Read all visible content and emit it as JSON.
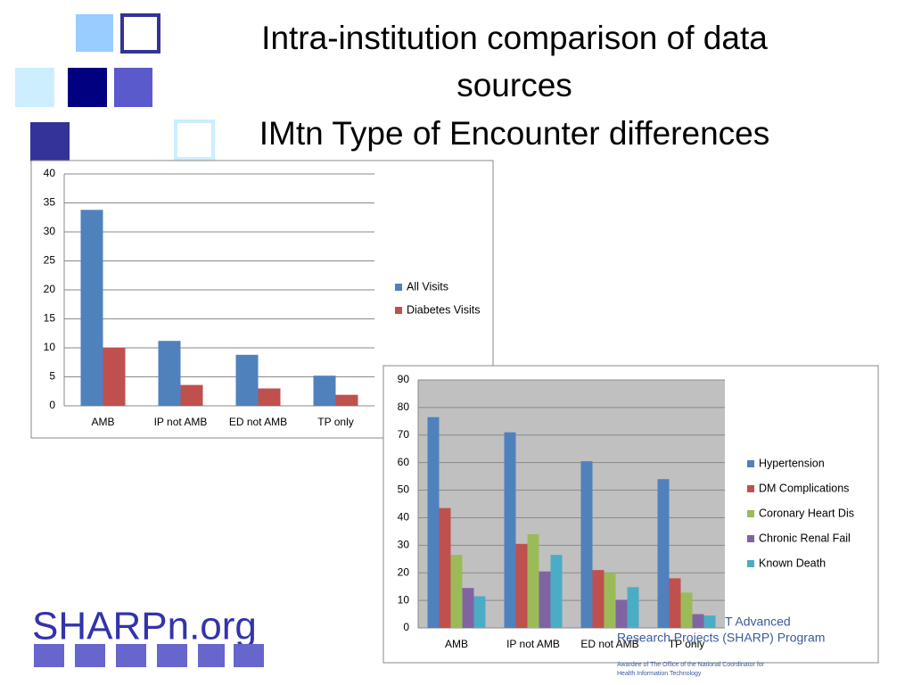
{
  "slide": {
    "title": [
      "Intra-institution comparison of data",
      "sources",
      "IMtn Type of Encounter differences"
    ],
    "logo": "SHARPn.org",
    "badge": [
      "T Advanced",
      "Research Projects (SHARP) Program",
      "Awardee of The Office of the National Coordinator for",
      "Health Information Technology"
    ]
  },
  "chart_data": [
    {
      "type": "bar",
      "categories": [
        "AMB",
        "IP not AMB",
        "ED not AMB",
        "TP only"
      ],
      "series": [
        {
          "name": "All Visits",
          "color": "#4f81bd",
          "values": [
            33.8,
            11.2,
            8.8,
            5.2
          ]
        },
        {
          "name": "Diabetes Visits",
          "color": "#c0504d",
          "values": [
            10,
            3.6,
            3.0,
            1.9
          ]
        }
      ],
      "ylim": [
        0,
        40
      ],
      "yticks": [
        0,
        5,
        10,
        15,
        20,
        25,
        30,
        35,
        40
      ],
      "grid": true,
      "legend": "right"
    },
    {
      "type": "bar",
      "categories": [
        "AMB",
        "IP not AMB",
        "ED not AMB",
        "TP only"
      ],
      "series": [
        {
          "name": "Hypertension",
          "color": "#4f81bd",
          "values": [
            76.5,
            71,
            60.5,
            54
          ]
        },
        {
          "name": "DM Complications",
          "color": "#c0504d",
          "values": [
            43.5,
            30.5,
            21,
            18
          ]
        },
        {
          "name": "Coronary Heart Dis",
          "color": "#9bbb59",
          "values": [
            26.5,
            34,
            20,
            12.8
          ]
        },
        {
          "name": "Chronic Renal Fail",
          "color": "#8064a2",
          "values": [
            14.5,
            20.5,
            10.2,
            5
          ]
        },
        {
          "name": "Known Death",
          "color": "#4bacc6",
          "values": [
            11.5,
            26.5,
            14.8,
            4.5
          ]
        }
      ],
      "ylim": [
        0,
        90
      ],
      "yticks": [
        0,
        10,
        20,
        30,
        40,
        50,
        60,
        70,
        80,
        90
      ],
      "grid": true,
      "legend": "right",
      "plot_background": "#c0c0c0"
    }
  ]
}
